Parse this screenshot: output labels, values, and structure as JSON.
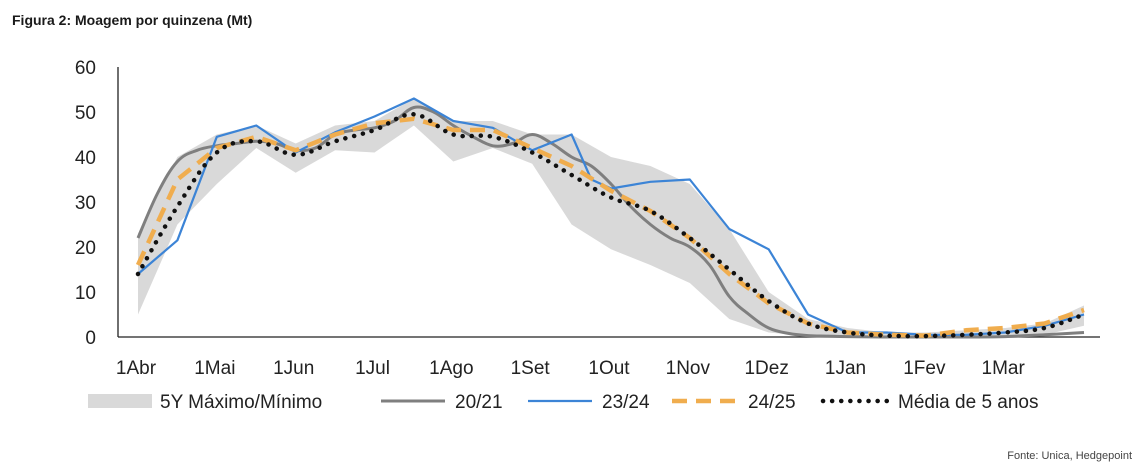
{
  "figure": {
    "title": "Figura 2: Moagem por quinzena (Mt)",
    "source": "Fonte: Unica, Hedgepoint"
  },
  "chart_data": {
    "type": "line",
    "title": "Figura 2: Moagem por quinzena (Mt)",
    "xlabel": "",
    "ylabel": "",
    "ylim": [
      0,
      60
    ],
    "yticks": [
      0,
      10,
      20,
      30,
      40,
      50,
      60
    ],
    "xlim": [
      0,
      24
    ],
    "xtick_positions": [
      0,
      2,
      4,
      6,
      8,
      10,
      12,
      14,
      16,
      18,
      20,
      22
    ],
    "xtick_labels": [
      "1Abr",
      "1Mai",
      "1Jun",
      "1Jul",
      "1Ago",
      "1Set",
      "1Out",
      "1Nov",
      "1Dez",
      "1Jan",
      "1Fev",
      "1Mar"
    ],
    "grid": false,
    "legend": "bottom",
    "colors": {
      "band": "#d9d9d9",
      "s2021": "#7f7f7f",
      "s2324": "#3c84d6",
      "s2425": "#f0ad4e",
      "avg": "#111111"
    },
    "band": {
      "name": "5Y Máximo/Mínimo",
      "x": [
        0,
        1,
        2,
        3,
        4,
        5,
        6,
        7,
        8,
        9,
        10,
        11,
        12,
        13,
        14,
        15,
        16,
        17,
        18,
        19,
        20,
        21,
        22,
        23,
        24
      ],
      "upper": [
        23,
        40,
        45,
        47,
        43,
        47,
        48,
        53,
        48,
        48,
        45,
        45,
        40,
        38,
        34,
        24,
        10,
        4,
        2,
        1,
        1,
        1.5,
        2,
        3,
        7
      ],
      "lower": [
        5,
        25,
        34,
        42,
        36.5,
        41.5,
        41,
        47,
        39,
        42,
        38.5,
        25,
        19.5,
        16,
        12,
        4,
        1,
        0.2,
        0,
        0,
        0,
        0,
        0.2,
        0.5,
        2.5
      ]
    },
    "series": [
      {
        "name": "20/21",
        "key": "s2021",
        "x": [
          0,
          0.5,
          1,
          1.5,
          2,
          2.5,
          3,
          3.5,
          4,
          4.5,
          5,
          5.5,
          6,
          6.5,
          7,
          7.5,
          8,
          8.5,
          9,
          9.5,
          10,
          10.5,
          11,
          11.5,
          12,
          12.5,
          13,
          13.5,
          14,
          14.5,
          15,
          15.5,
          16,
          16.5,
          17,
          17.5,
          18,
          19,
          20,
          21,
          22,
          23,
          24
        ],
        "y": [
          22,
          32,
          39,
          41.5,
          42.5,
          43,
          43.5,
          43,
          41.5,
          42,
          45,
          46,
          46.5,
          48,
          51,
          50,
          47,
          44.5,
          42.5,
          43,
          45,
          43,
          40,
          38,
          34,
          29,
          25,
          22,
          20,
          16,
          9,
          5,
          2,
          0.8,
          0.3,
          0.2,
          0.1,
          0,
          0,
          0,
          0.1,
          0.5,
          1
        ]
      },
      {
        "name": "23/24",
        "key": "s2324",
        "x": [
          0,
          1,
          2,
          3,
          4,
          5,
          6,
          7,
          8,
          9,
          10,
          11,
          11.5,
          12,
          13,
          14,
          15,
          16,
          17,
          18,
          19,
          20,
          21,
          22,
          23,
          24
        ],
        "y": [
          14,
          21.5,
          44.5,
          47,
          41,
          45.5,
          49,
          53,
          48,
          46.5,
          41.5,
          45,
          35,
          33,
          34.5,
          35,
          24,
          19.5,
          5,
          1,
          1,
          0.5,
          0.5,
          1,
          2.5,
          5
        ]
      },
      {
        "name": "24/25",
        "key": "s2425",
        "x": [
          0,
          1,
          2,
          3,
          4,
          5,
          6,
          7,
          8,
          9,
          10,
          11,
          12,
          13,
          14,
          15,
          16,
          17,
          18,
          19,
          20,
          21,
          22,
          23,
          24
        ],
        "y": [
          16,
          35,
          42,
          44.5,
          41.5,
          45,
          47.5,
          48.5,
          46,
          46,
          42,
          38,
          32.5,
          28,
          22,
          14,
          7.5,
          3,
          1,
          0.5,
          0.3,
          1.5,
          2,
          3,
          6
        ]
      },
      {
        "name": "Média de 5 anos",
        "key": "avg",
        "x": [
          0,
          1,
          2,
          3,
          4,
          5,
          6,
          7,
          8,
          9,
          10,
          11,
          12,
          13,
          14,
          15,
          16,
          17,
          18,
          19,
          20,
          21,
          22,
          23,
          24
        ],
        "y": [
          14,
          29,
          41,
          43.5,
          40.5,
          43.5,
          46,
          49.5,
          45,
          44.5,
          41,
          36,
          31,
          28,
          22,
          15,
          8,
          3,
          1,
          0.3,
          0.2,
          0.5,
          1,
          2,
          5
        ]
      }
    ]
  }
}
